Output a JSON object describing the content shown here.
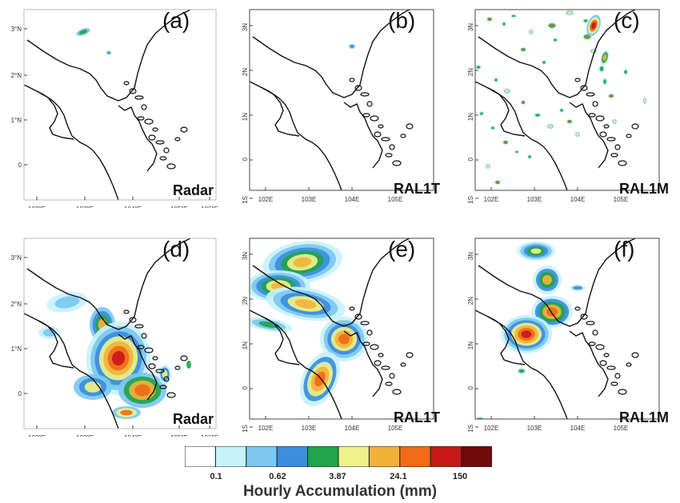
{
  "panels": [
    {
      "letter": "(a)",
      "model": "Radar"
    },
    {
      "letter": "(b)",
      "model": "RAL1T"
    },
    {
      "letter": "(c)",
      "model": "RAL1M"
    },
    {
      "letter": "(d)",
      "model": "Radar"
    },
    {
      "letter": "(e)",
      "model": "RAL1T"
    },
    {
      "letter": "(f)",
      "model": "RAL1M"
    }
  ],
  "radar_axes": {
    "lat_ticks": [
      "3°N",
      "2°N",
      "1°N",
      "0"
    ],
    "lon_ticks": [
      "102°E",
      "103°E",
      "104°E",
      "105°E",
      "106°E"
    ]
  },
  "model_axes": {
    "lat_ticks": [
      "3N",
      "2N",
      "1N",
      "0",
      "1S"
    ],
    "lon_ticks": [
      "102E",
      "103E",
      "104E",
      "105E"
    ]
  },
  "colorbar": {
    "colors": [
      "#ffffff",
      "#c8f2fa",
      "#7cc8f0",
      "#3c8ee0",
      "#23a34a",
      "#eef08a",
      "#f2b23a",
      "#f06a18",
      "#c81818",
      "#6e0a0a"
    ],
    "tick_labels": [
      "0.1",
      "0.62",
      "3.87",
      "24.1",
      "150"
    ],
    "title": "Hourly Accumulation (mm)"
  }
}
